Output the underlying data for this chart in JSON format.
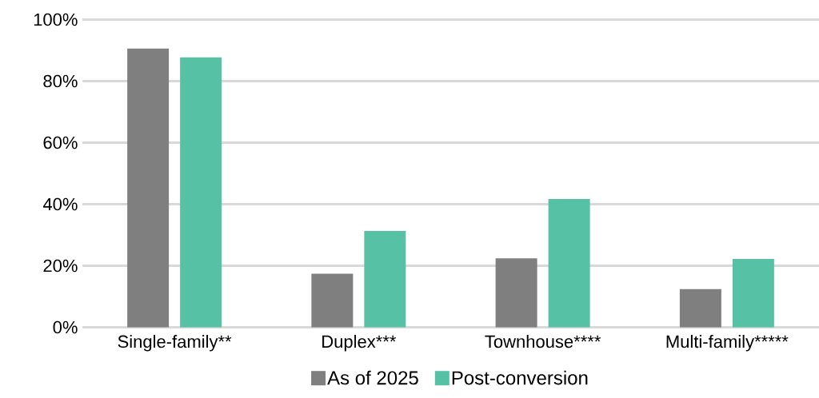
{
  "chart_data": {
    "type": "bar",
    "categories": [
      "Single-family**",
      "Duplex***",
      "Townhouse****",
      "Multi-family*****"
    ],
    "series": [
      {
        "name": "As of 2025",
        "color": "#7f7f7f",
        "values": [
          90.6,
          17.4,
          22.4,
          12.4
        ]
      },
      {
        "name": "Post-conversion",
        "color": "#57c1a6",
        "values": [
          87.7,
          31.3,
          41.7,
          22.2
        ]
      }
    ],
    "ylim": [
      0,
      100
    ],
    "yticks": [
      {
        "value": 0,
        "label": "0%"
      },
      {
        "value": 20,
        "label": "20%"
      },
      {
        "value": 40,
        "label": "40%"
      },
      {
        "value": 60,
        "label": "60%"
      },
      {
        "value": 80,
        "label": "80%"
      },
      {
        "value": 100,
        "label": "100%"
      }
    ],
    "grid": "y",
    "legend": "bottom"
  }
}
